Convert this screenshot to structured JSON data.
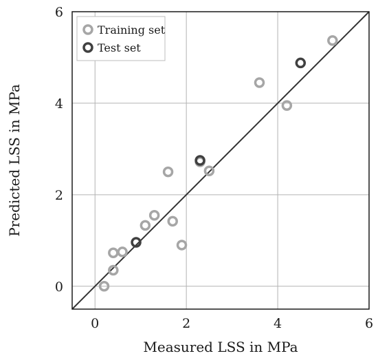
{
  "chart_data": {
    "type": "scatter",
    "xlabel": "Measured LSS in MPa",
    "ylabel": "Predicted LSS in MPa",
    "xlim": [
      -0.5,
      6
    ],
    "ylim": [
      -0.5,
      6
    ],
    "xticks": [
      "0",
      "2",
      "4",
      "6"
    ],
    "yticks": [
      "0",
      "2",
      "4",
      "6"
    ],
    "grid": true,
    "legend_position": "top-left",
    "reference_line": {
      "x": [
        -0.5,
        6
      ],
      "y": [
        -0.5,
        6
      ],
      "color": "#333333"
    },
    "series": [
      {
        "name": "Training set",
        "color": "#a6a6a6",
        "points": [
          {
            "x": 0.2,
            "y": 0.0
          },
          {
            "x": 0.4,
            "y": 0.35
          },
          {
            "x": 0.4,
            "y": 0.73
          },
          {
            "x": 0.6,
            "y": 0.75
          },
          {
            "x": 1.1,
            "y": 1.33
          },
          {
            "x": 1.3,
            "y": 1.55
          },
          {
            "x": 1.6,
            "y": 2.5
          },
          {
            "x": 1.7,
            "y": 1.42
          },
          {
            "x": 1.9,
            "y": 0.9
          },
          {
            "x": 2.3,
            "y": 2.72
          },
          {
            "x": 2.5,
            "y": 2.52
          },
          {
            "x": 3.6,
            "y": 4.45
          },
          {
            "x": 4.2,
            "y": 3.95
          },
          {
            "x": 5.2,
            "y": 5.37
          }
        ]
      },
      {
        "name": "Test set",
        "color": "#404040",
        "points": [
          {
            "x": 0.9,
            "y": 0.96
          },
          {
            "x": 2.3,
            "y": 2.75
          },
          {
            "x": 4.5,
            "y": 4.88
          }
        ]
      }
    ]
  }
}
